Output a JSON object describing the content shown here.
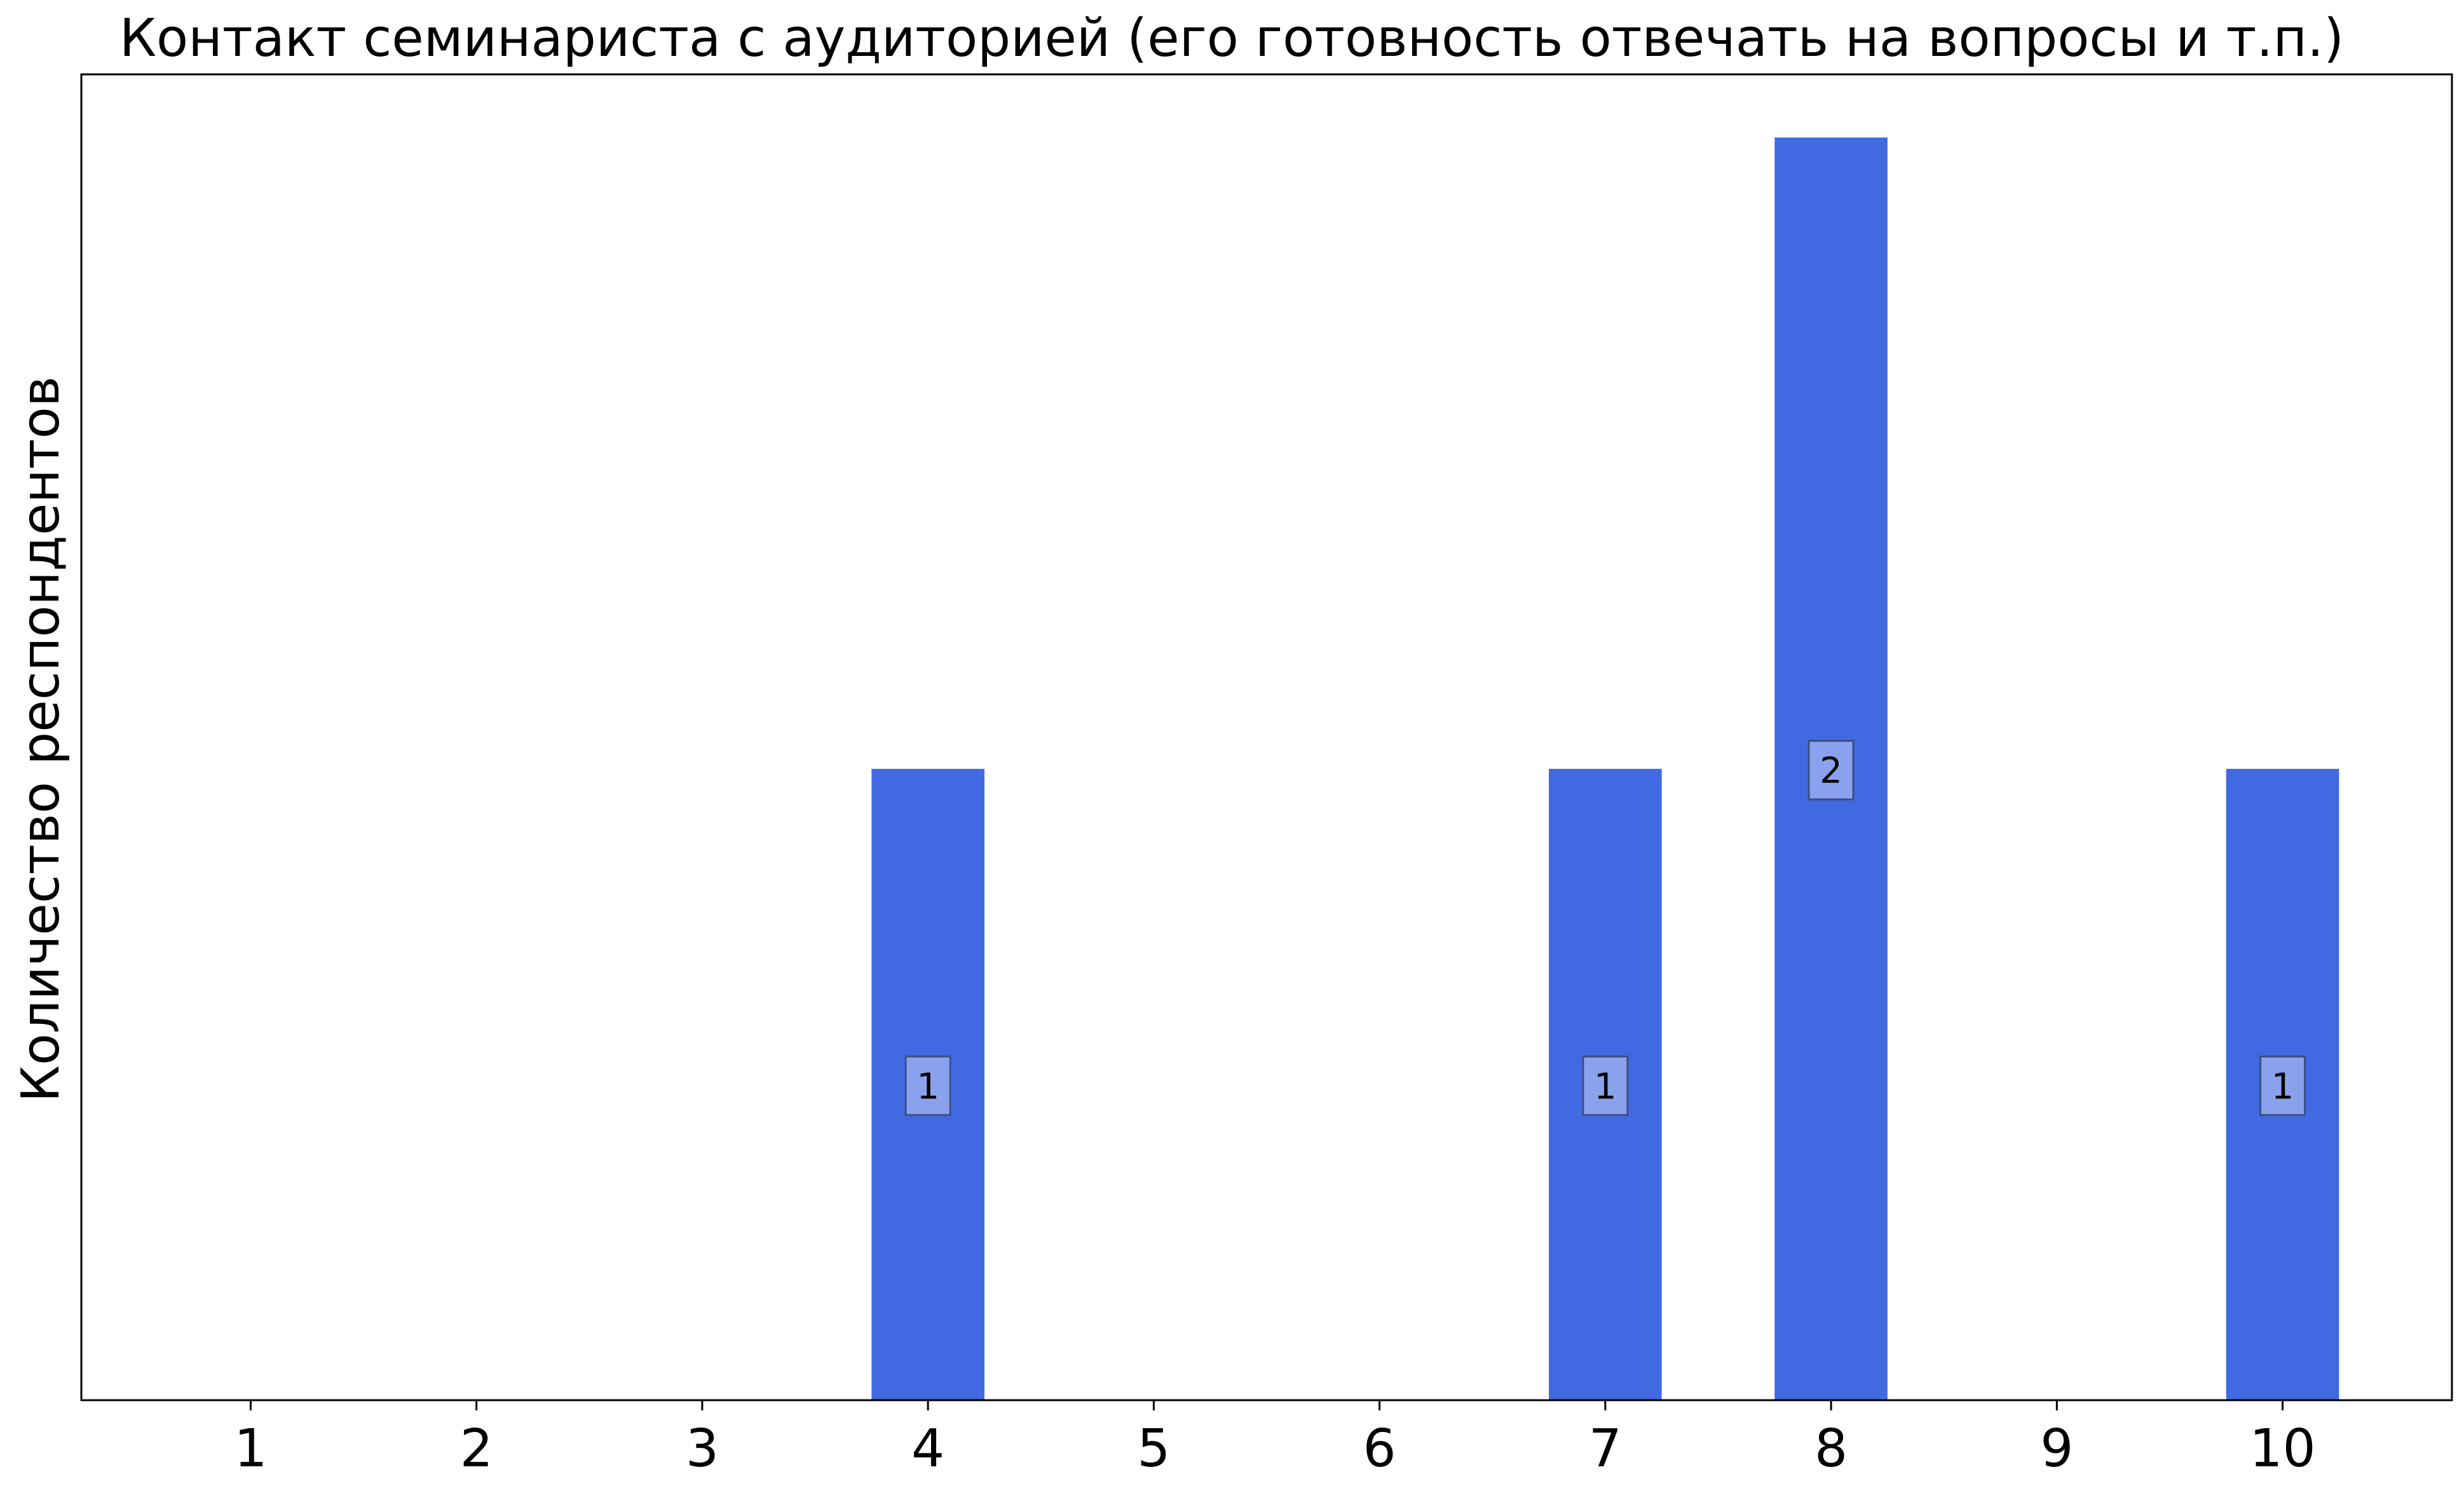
{
  "chart_data": {
    "type": "bar",
    "title": "Контакт семинариста с аудиторией (его готовность отвечать на вопросы и т.п.)",
    "xlabel": "",
    "ylabel": "Количество респондентов",
    "categories": [
      "1",
      "2",
      "3",
      "4",
      "5",
      "6",
      "7",
      "8",
      "9",
      "10"
    ],
    "values": [
      0,
      0,
      0,
      1,
      0,
      0,
      1,
      2,
      0,
      1
    ],
    "ylim": [
      0,
      2.1
    ],
    "grid": false,
    "legend": "none",
    "show_y_ticks": false,
    "data_labels": true,
    "colors": {
      "bar": "#4169e1",
      "label_box_fill": "#8aa2ed",
      "label_box_stroke": "#3d4f85",
      "axis": "#000000"
    }
  }
}
